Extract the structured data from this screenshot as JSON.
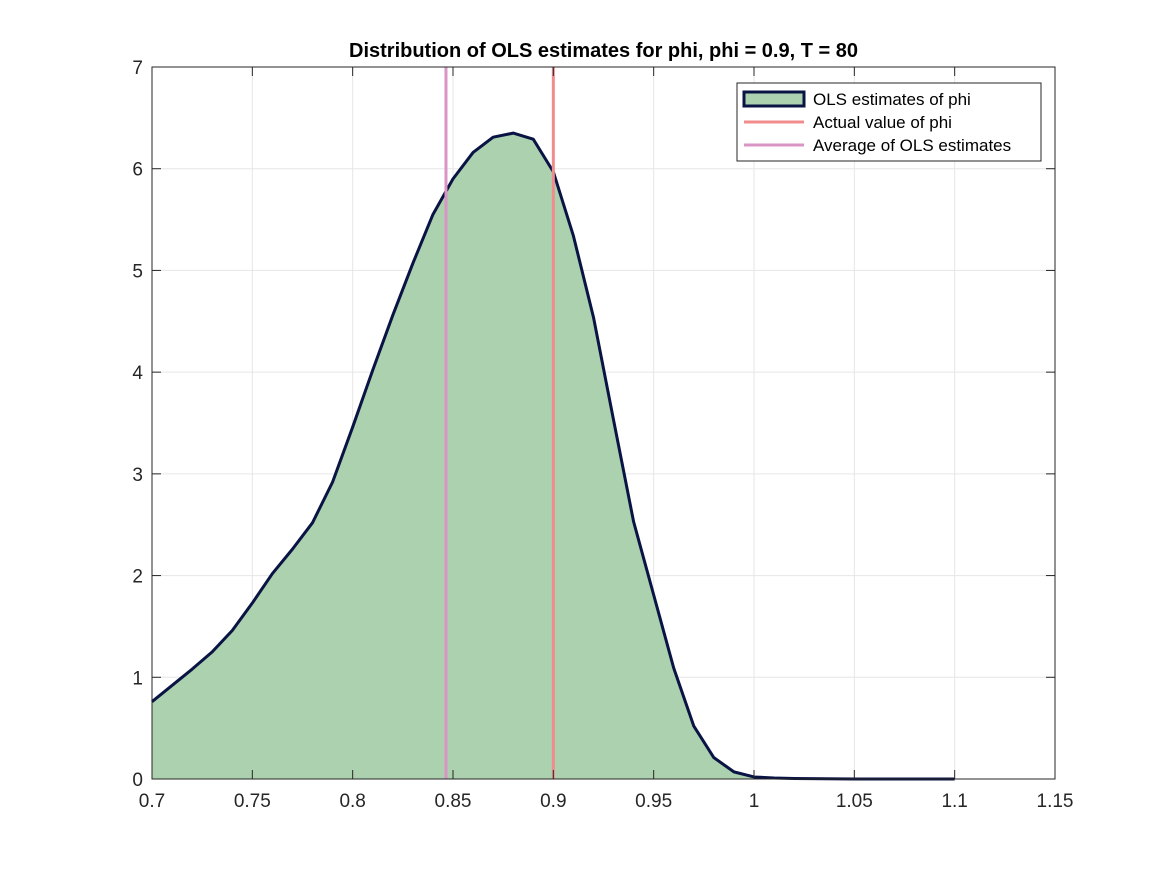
{
  "chart_data": {
    "type": "area",
    "title": "Distribution of OLS estimates for phi, phi = 0.9, T = 80",
    "xlabel": "",
    "ylabel": "",
    "xlim": [
      0.7,
      1.15
    ],
    "ylim": [
      0,
      7
    ],
    "x_ticks": [
      "0.7",
      "0.75",
      "0.8",
      "0.85",
      "0.9",
      "0.95",
      "1",
      "1.05",
      "1.1",
      "1.15"
    ],
    "y_ticks": [
      "0",
      "1",
      "2",
      "3",
      "4",
      "5",
      "6",
      "7"
    ],
    "grid": true,
    "legend_position": "top-right",
    "legend": [
      "OLS estimates of phi",
      "Actual value of phi",
      "Average of OLS estimates"
    ],
    "density": {
      "name": "OLS estimates of phi",
      "fill_color": "#acd1af",
      "edge_color": "#0a1444",
      "x": [
        0.7,
        0.71,
        0.72,
        0.73,
        0.74,
        0.75,
        0.76,
        0.77,
        0.78,
        0.79,
        0.8,
        0.81,
        0.82,
        0.83,
        0.84,
        0.85,
        0.86,
        0.87,
        0.88,
        0.89,
        0.9,
        0.91,
        0.92,
        0.93,
        0.94,
        0.95,
        0.96,
        0.97,
        0.98,
        0.99,
        1.0,
        1.01,
        1.02,
        1.05,
        1.1
      ],
      "y": [
        0.76,
        0.92,
        1.08,
        1.25,
        1.46,
        1.73,
        2.02,
        2.26,
        2.52,
        2.92,
        3.46,
        4.02,
        4.56,
        5.07,
        5.55,
        5.9,
        6.16,
        6.31,
        6.35,
        6.29,
        5.97,
        5.34,
        4.54,
        3.53,
        2.53,
        1.81,
        1.09,
        0.52,
        0.21,
        0.07,
        0.02,
        0.01,
        0.005,
        0.0,
        0.0
      ]
    },
    "vertical_lines": [
      {
        "name": "Actual value of phi",
        "x": 0.9,
        "color": "#f08c8c"
      },
      {
        "name": "Average of OLS estimates",
        "x": 0.8465,
        "color": "#d995c4"
      }
    ]
  }
}
